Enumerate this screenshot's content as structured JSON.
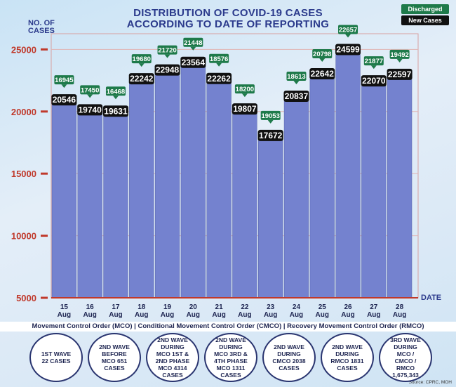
{
  "chart_data": {
    "type": "bar",
    "title": [
      "DISTRIBUTION OF COVID-19 CASES",
      "ACCORDING TO DATE OF REPORTING"
    ],
    "y_label": "NO. OF CASES",
    "x_label": "DATE",
    "categories": [
      "15 Aug",
      "16 Aug",
      "17 Aug",
      "18 Aug",
      "19 Aug",
      "20 Aug",
      "21 Aug",
      "22 Aug",
      "23 Aug",
      "24 Aug",
      "25 Aug",
      "26 Aug",
      "27 Aug",
      "28 Aug"
    ],
    "series": [
      {
        "name": "New Cases",
        "color": "#7482cf",
        "values": [
          20546,
          19740,
          19631,
          22242,
          22948,
          23564,
          22262,
          19807,
          17672,
          20837,
          22642,
          24599,
          22070,
          22597
        ]
      },
      {
        "name": "Discharged",
        "color": "#1e7a4a",
        "values": [
          16945,
          17450,
          16468,
          19680,
          21720,
          21448,
          18576,
          18200,
          19053,
          18613,
          20798,
          22657,
          21877,
          19492
        ]
      }
    ],
    "ylim": [
      5000,
      27000
    ],
    "yticks": [
      5000,
      10000,
      15000,
      20000,
      25000
    ],
    "note": "Movement Control Order (MCO) | Conditional Movement Control Order (CMCO) | Recovery Movement Control Order (RMCO)",
    "waves": [
      "1ST WAVE 22 CASES",
      "2ND WAVE BEFORE MCO 651 CASES",
      "2ND WAVE DURING MCO 1ST & 2ND PHASE MCO 4314 CASES",
      "2ND WAVE DURING MCO 3RD & 4TH PHASE MCO 1311 CASES",
      "2ND WAVE DURING CMCO 2038 CASES",
      "2ND WAVE DURING RMCO 1831 CASES",
      "3RD WAVE DURING MCO / CMCO / RMCO 1,675,343"
    ],
    "source": "Source: CPRC, MOH"
  }
}
